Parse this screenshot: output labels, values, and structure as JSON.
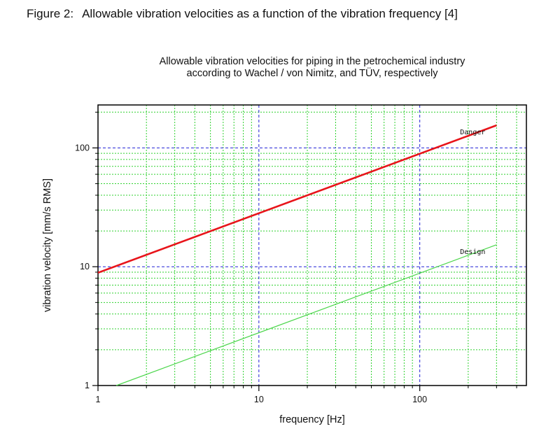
{
  "figure": {
    "number": "Figure 2:",
    "caption": "Allowable vibration velocities as a function of the vibration frequency [4]"
  },
  "chart_data": {
    "type": "line",
    "title_lines": [
      "Allowable vibration velocities for piping in the petrochemical industry",
      "according to Wachel / von Nimitz, and TÜV, respectively"
    ],
    "xlabel": "frequency [Hz]",
    "ylabel": "vibration velocity [mm/s RMS]",
    "x_scale": "log",
    "y_scale": "log",
    "xlim": [
      1,
      460
    ],
    "ylim": [
      1,
      230
    ],
    "x_ticks": [
      {
        "value": 1,
        "label": "1"
      },
      {
        "value": 10,
        "label": "10"
      },
      {
        "value": 100,
        "label": "100"
      }
    ],
    "y_ticks": [
      {
        "value": 1,
        "label": "1"
      },
      {
        "value": 10,
        "label": "10"
      },
      {
        "value": 100,
        "label": "100"
      }
    ],
    "grid": {
      "major": "blue dashed",
      "minor": "green dotted"
    },
    "series": [
      {
        "name": "Danger",
        "color": "#e8141a",
        "x": [
          1,
          300
        ],
        "y": [
          8.9,
          155
        ]
      },
      {
        "name": "Design",
        "color": "#4cd64c",
        "x": [
          1.3,
          300
        ],
        "y": [
          1.0,
          15.3
        ]
      }
    ]
  }
}
